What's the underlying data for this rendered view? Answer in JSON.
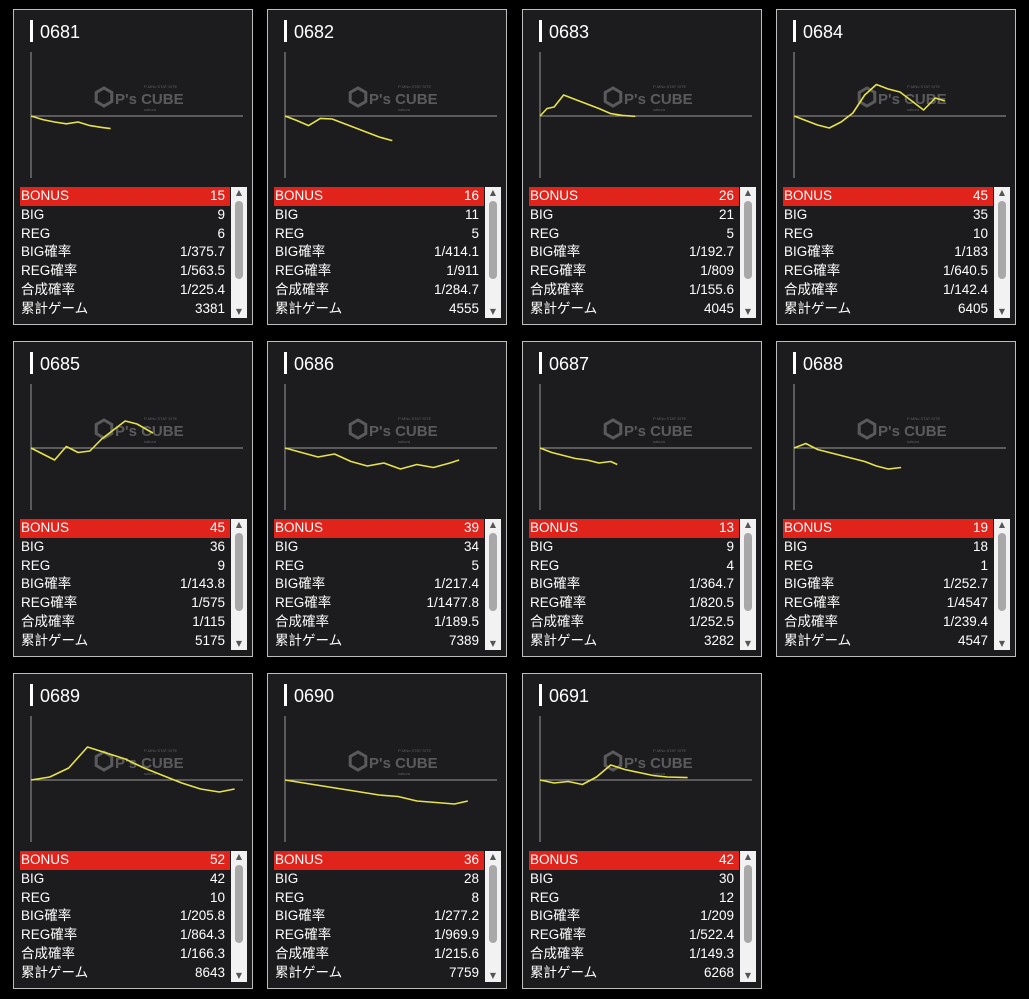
{
  "watermark": {
    "brand": "P's CUBE",
    "small_top": "P-MNo STAT SITE",
    "small_bottom": "sakura"
  },
  "colors": {
    "card_bg": "#1c1c1e",
    "bonus_row": "#e0231b",
    "graph_line": "#e6e34a",
    "baseline": "#9a9a9a"
  },
  "labels": {
    "bonus": "BONUS",
    "big": "BIG",
    "reg": "REG",
    "big_prob": "BIG確率",
    "reg_prob": "REG確率",
    "total_prob": "合成確率",
    "games": "累計ゲーム"
  },
  "machines": [
    {
      "id": "0681",
      "bonus": "15",
      "big": "9",
      "reg": "6",
      "big_prob": "1/375.7",
      "reg_prob": "1/563.5",
      "total_prob": "1/225.4",
      "games": "3381"
    },
    {
      "id": "0682",
      "bonus": "16",
      "big": "11",
      "reg": "5",
      "big_prob": "1/414.1",
      "reg_prob": "1/911",
      "total_prob": "1/284.7",
      "games": "4555"
    },
    {
      "id": "0683",
      "bonus": "26",
      "big": "21",
      "reg": "5",
      "big_prob": "1/192.7",
      "reg_prob": "1/809",
      "total_prob": "1/155.6",
      "games": "4045"
    },
    {
      "id": "0684",
      "bonus": "45",
      "big": "35",
      "reg": "10",
      "big_prob": "1/183",
      "reg_prob": "1/640.5",
      "total_prob": "1/142.4",
      "games": "6405"
    },
    {
      "id": "0685",
      "bonus": "45",
      "big": "36",
      "reg": "9",
      "big_prob": "1/143.8",
      "reg_prob": "1/575",
      "total_prob": "1/115",
      "games": "5175"
    },
    {
      "id": "0686",
      "bonus": "39",
      "big": "34",
      "reg": "5",
      "big_prob": "1/217.4",
      "reg_prob": "1/1477.8",
      "total_prob": "1/189.5",
      "games": "7389"
    },
    {
      "id": "0687",
      "bonus": "13",
      "big": "9",
      "reg": "4",
      "big_prob": "1/364.7",
      "reg_prob": "1/820.5",
      "total_prob": "1/252.5",
      "games": "3282"
    },
    {
      "id": "0688",
      "bonus": "19",
      "big": "18",
      "reg": "1",
      "big_prob": "1/252.7",
      "reg_prob": "1/4547",
      "total_prob": "1/239.4",
      "games": "4547"
    },
    {
      "id": "0689",
      "bonus": "52",
      "big": "42",
      "reg": "10",
      "big_prob": "1/205.8",
      "reg_prob": "1/864.3",
      "total_prob": "1/166.3",
      "games": "8643"
    },
    {
      "id": "0690",
      "bonus": "36",
      "big": "28",
      "reg": "8",
      "big_prob": "1/277.2",
      "reg_prob": "1/969.9",
      "total_prob": "1/215.6",
      "games": "7759"
    },
    {
      "id": "0691",
      "bonus": "42",
      "big": "30",
      "reg": "12",
      "big_prob": "1/209",
      "reg_prob": "1/522.4",
      "total_prob": "1/149.3",
      "games": "6268"
    }
  ],
  "chart_data": [
    {
      "type": "line",
      "machine": "0681",
      "x": [
        0,
        500,
        1000,
        1500,
        2000,
        2500,
        3000,
        3381
      ],
      "y": [
        0,
        -120,
        -200,
        -260,
        -200,
        -320,
        -380,
        -420
      ]
    },
    {
      "type": "line",
      "machine": "0682",
      "x": [
        0,
        500,
        1000,
        1500,
        2000,
        2500,
        3000,
        3500,
        4000,
        4555
      ],
      "y": [
        0,
        -150,
        -320,
        -80,
        -100,
        -250,
        -400,
        -550,
        -700,
        -820
      ]
    },
    {
      "type": "line",
      "machine": "0683",
      "x": [
        0,
        300,
        600,
        1000,
        1500,
        2000,
        2500,
        3000,
        3500,
        4045
      ],
      "y": [
        0,
        250,
        300,
        700,
        550,
        400,
        250,
        80,
        20,
        -10
      ]
    },
    {
      "type": "line",
      "machine": "0684",
      "x": [
        0,
        500,
        1000,
        1500,
        2000,
        2500,
        3000,
        3500,
        4000,
        4500,
        5000,
        5500,
        6000,
        6405
      ],
      "y": [
        0,
        -150,
        -300,
        -400,
        -200,
        100,
        700,
        1050,
        900,
        800,
        500,
        200,
        600,
        500
      ]
    },
    {
      "type": "line",
      "machine": "0685",
      "x": [
        0,
        500,
        1000,
        1500,
        2000,
        2500,
        3000,
        3500,
        4000,
        4500,
        5175
      ],
      "y": [
        0,
        -200,
        -400,
        50,
        -150,
        -100,
        300,
        600,
        900,
        800,
        500
      ]
    },
    {
      "type": "line",
      "machine": "0686",
      "x": [
        0,
        700,
        1400,
        2100,
        2800,
        3500,
        4200,
        4900,
        5600,
        6300,
        7000,
        7389
      ],
      "y": [
        0,
        -150,
        -300,
        -200,
        -450,
        -600,
        -500,
        -700,
        -550,
        -650,
        -500,
        -400
      ]
    },
    {
      "type": "line",
      "machine": "0687",
      "x": [
        0,
        500,
        1000,
        1500,
        2000,
        2500,
        3000,
        3282
      ],
      "y": [
        0,
        -150,
        -250,
        -350,
        -400,
        -500,
        -450,
        -550
      ]
    },
    {
      "type": "line",
      "machine": "0688",
      "x": [
        0,
        500,
        1000,
        1500,
        2000,
        2500,
        3000,
        3500,
        4000,
        4547
      ],
      "y": [
        0,
        150,
        -50,
        -150,
        -250,
        -350,
        -450,
        -600,
        -700,
        -650
      ]
    },
    {
      "type": "line",
      "machine": "0689",
      "x": [
        0,
        800,
        1600,
        2400,
        3200,
        4000,
        4800,
        5600,
        6400,
        7200,
        8000,
        8643
      ],
      "y": [
        0,
        100,
        400,
        1100,
        900,
        700,
        400,
        150,
        -100,
        -300,
        -400,
        -300
      ]
    },
    {
      "type": "line",
      "machine": "0690",
      "x": [
        0,
        800,
        1600,
        2400,
        3200,
        4000,
        4800,
        5600,
        6400,
        7200,
        7759
      ],
      "y": [
        0,
        -100,
        -200,
        -300,
        -400,
        -500,
        -550,
        -700,
        -750,
        -800,
        -700
      ]
    },
    {
      "type": "line",
      "machine": "0691",
      "x": [
        0,
        600,
        1200,
        1800,
        2400,
        3000,
        3600,
        4200,
        4800,
        5400,
        6268
      ],
      "y": [
        0,
        -100,
        -50,
        -150,
        100,
        500,
        350,
        250,
        150,
        100,
        80
      ]
    }
  ]
}
